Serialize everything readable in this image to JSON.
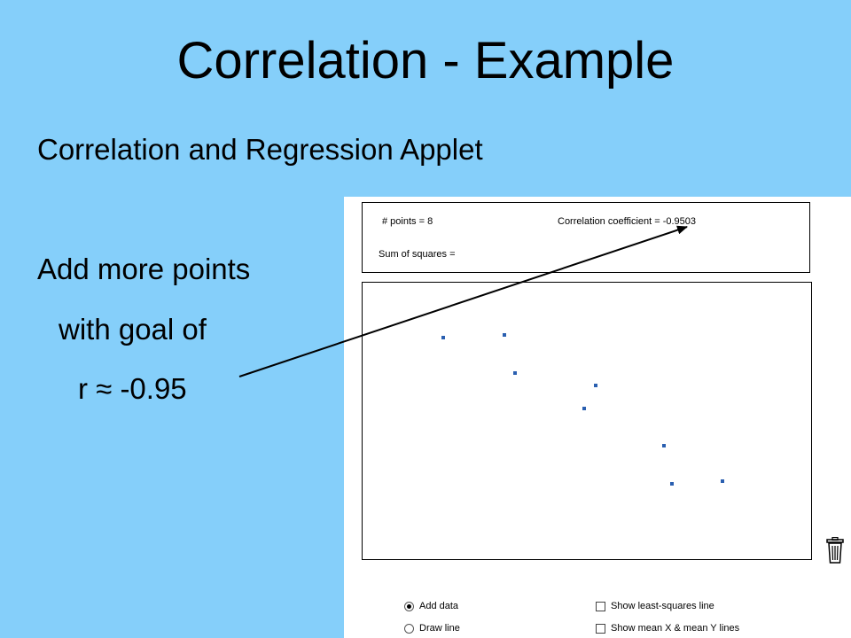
{
  "slide": {
    "title": "Correlation - Example",
    "subtitle": "Correlation and Regression Applet",
    "instruction_line1": "Add more points",
    "instruction_line2": "with goal of",
    "instruction_line3": "r ≈ -0.95"
  },
  "applet": {
    "points_label": "# points = 8",
    "correlation_label": "Correlation coefficient = -0.9503",
    "sum_of_squares_label": "Sum of squares =",
    "controls": {
      "add_data": "Add data",
      "draw_line": "Draw line",
      "show_least_squares": "Show least-squares line",
      "show_mean_lines": "Show mean X & mean Y lines"
    },
    "mode_selected": "add_data",
    "point_color": "#2a5fb0",
    "trash_icon": "trash-can-icon"
  },
  "colors": {
    "background": "#85cffa",
    "arrow": "#000000"
  }
}
